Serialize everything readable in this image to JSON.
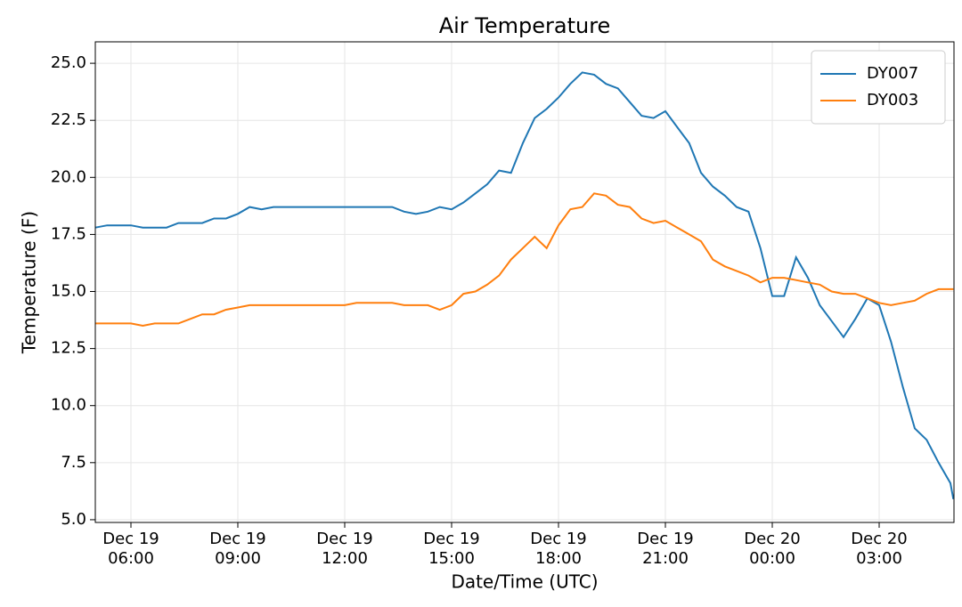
{
  "chart_data": {
    "type": "line",
    "title": "Air Temperature",
    "x_label": "Date/Time (UTC)",
    "y_label": "Temperature (F)",
    "x": [
      "Dec 19 05:00",
      "Dec 19 05:20",
      "Dec 19 05:40",
      "Dec 19 06:00",
      "Dec 19 06:20",
      "Dec 19 06:40",
      "Dec 19 07:00",
      "Dec 19 07:20",
      "Dec 19 07:40",
      "Dec 19 08:00",
      "Dec 19 08:20",
      "Dec 19 08:40",
      "Dec 19 09:00",
      "Dec 19 09:20",
      "Dec 19 09:40",
      "Dec 19 10:00",
      "Dec 19 10:20",
      "Dec 19 10:40",
      "Dec 19 11:00",
      "Dec 19 11:20",
      "Dec 19 11:40",
      "Dec 19 12:00",
      "Dec 19 12:20",
      "Dec 19 12:40",
      "Dec 19 13:00",
      "Dec 19 13:20",
      "Dec 19 13:40",
      "Dec 19 14:00",
      "Dec 19 14:20",
      "Dec 19 14:40",
      "Dec 19 15:00",
      "Dec 19 15:20",
      "Dec 19 15:40",
      "Dec 19 16:00",
      "Dec 19 16:20",
      "Dec 19 16:40",
      "Dec 19 17:00",
      "Dec 19 17:20",
      "Dec 19 17:40",
      "Dec 19 18:00",
      "Dec 19 18:20",
      "Dec 19 18:40",
      "Dec 19 19:00",
      "Dec 19 19:20",
      "Dec 19 19:40",
      "Dec 19 20:00",
      "Dec 19 20:20",
      "Dec 19 20:40",
      "Dec 19 21:00",
      "Dec 19 21:20",
      "Dec 19 21:40",
      "Dec 19 22:00",
      "Dec 19 22:20",
      "Dec 19 22:40",
      "Dec 19 23:00",
      "Dec 19 23:20",
      "Dec 19 23:40",
      "Dec 20 00:00",
      "Dec 20 00:20",
      "Dec 20 00:40",
      "Dec 20 01:00",
      "Dec 20 01:20",
      "Dec 20 01:40",
      "Dec 20 02:00",
      "Dec 20 02:20",
      "Dec 20 02:40",
      "Dec 20 03:00",
      "Dec 20 03:20",
      "Dec 20 03:40",
      "Dec 20 04:00",
      "Dec 20 04:20",
      "Dec 20 04:40",
      "Dec 20 05:00",
      "Dec 20 05:05"
    ],
    "series": [
      {
        "name": "DY007",
        "color": "#1f77b4",
        "values": [
          17.8,
          17.9,
          17.9,
          17.9,
          17.8,
          17.8,
          17.8,
          18.0,
          18.0,
          18.0,
          18.2,
          18.2,
          18.4,
          18.7,
          18.6,
          18.7,
          18.7,
          18.7,
          18.7,
          18.7,
          18.7,
          18.7,
          18.7,
          18.7,
          18.7,
          18.7,
          18.5,
          18.4,
          18.5,
          18.7,
          18.6,
          18.9,
          19.3,
          19.7,
          20.3,
          20.2,
          21.5,
          22.6,
          23.0,
          23.5,
          24.1,
          24.6,
          24.5,
          24.1,
          23.9,
          23.3,
          22.7,
          22.6,
          22.9,
          22.2,
          21.5,
          20.2,
          19.6,
          19.2,
          18.7,
          18.5,
          16.9,
          14.8,
          14.8,
          16.5,
          15.6,
          14.4,
          13.7,
          13.0,
          13.8,
          14.7,
          14.4,
          12.8,
          10.8,
          9.0,
          8.5,
          7.5,
          6.6,
          5.9
        ]
      },
      {
        "name": "DY003",
        "color": "#ff7f0e",
        "values": [
          13.6,
          13.6,
          13.6,
          13.6,
          13.5,
          13.6,
          13.6,
          13.6,
          13.8,
          14.0,
          14.0,
          14.2,
          14.3,
          14.4,
          14.4,
          14.4,
          14.4,
          14.4,
          14.4,
          14.4,
          14.4,
          14.4,
          14.5,
          14.5,
          14.5,
          14.5,
          14.4,
          14.4,
          14.4,
          14.2,
          14.4,
          14.9,
          15.0,
          15.3,
          15.7,
          16.4,
          16.9,
          17.4,
          16.9,
          17.9,
          18.6,
          18.7,
          19.3,
          19.2,
          18.8,
          18.7,
          18.2,
          18.0,
          18.1,
          17.8,
          17.5,
          17.2,
          16.4,
          16.1,
          15.9,
          15.7,
          15.4,
          15.6,
          15.6,
          15.5,
          15.4,
          15.3,
          15.0,
          14.9,
          14.9,
          14.7,
          14.5,
          14.4,
          14.5,
          14.6,
          14.9,
          15.1,
          15.1,
          15.1
        ]
      }
    ],
    "xlim": [
      "Dec 19 05:00",
      "Dec 20 05:06"
    ],
    "xticks": [
      {
        "value": "Dec 19 06:00",
        "label": "Dec 19\n06:00"
      },
      {
        "value": "Dec 19 09:00",
        "label": "Dec 19\n09:00"
      },
      {
        "value": "Dec 19 12:00",
        "label": "Dec 19\n12:00"
      },
      {
        "value": "Dec 19 15:00",
        "label": "Dec 19\n15:00"
      },
      {
        "value": "Dec 19 18:00",
        "label": "Dec 19\n18:00"
      },
      {
        "value": "Dec 19 21:00",
        "label": "Dec 19\n21:00"
      },
      {
        "value": "Dec 20 00:00",
        "label": "Dec 20\n00:00"
      },
      {
        "value": "Dec 20 03:00",
        "label": "Dec 20\n03:00"
      }
    ],
    "ylim": [
      4.88,
      25.94
    ],
    "yticks": [
      {
        "value": 5,
        "label": "5.0"
      },
      7.5,
      {
        "value": 10,
        "label": "10.0"
      },
      12.5,
      {
        "value": 15,
        "label": "15.0"
      },
      17.5,
      {
        "value": 20,
        "label": "20.0"
      },
      22.5,
      {
        "value": 25,
        "label": "25.0"
      }
    ],
    "grid": true,
    "legend": "upper right"
  }
}
